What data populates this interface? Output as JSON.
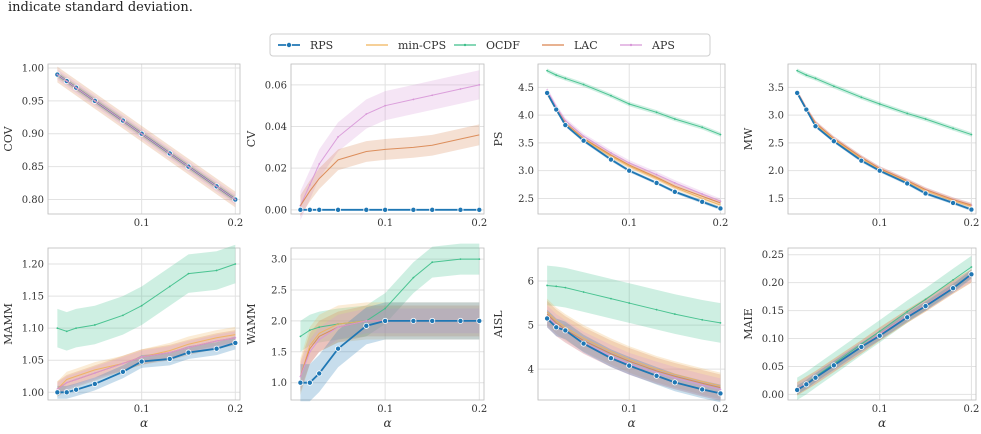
{
  "caption_text": "indicate standard deviation.",
  "legend": {
    "entries": [
      {
        "name": "RPS",
        "color": "#1f77b4",
        "marker": "dot"
      },
      {
        "name": "min-CPS",
        "color": "#f0b35a",
        "marker": "none"
      },
      {
        "name": "OCDF",
        "color": "#3dbf8a",
        "marker": "small"
      },
      {
        "name": "LAC",
        "color": "#d9854f",
        "marker": "none"
      },
      {
        "name": "APS",
        "color": "#d897d8",
        "marker": "small"
      }
    ]
  },
  "chart_data": [
    {
      "type": "line",
      "ylabel": "COV",
      "xlabel": "",
      "xlim": [
        0.0,
        0.205
      ],
      "ylim": [
        0.778,
        1.006
      ],
      "xticks": [
        "",
        "0.1",
        "0.2"
      ],
      "xtickvals": [
        0.0,
        0.1,
        0.2
      ],
      "yticks": [
        "0.80",
        "0.85",
        "0.90",
        "0.95",
        "1.00"
      ],
      "ytickvals": [
        0.8,
        0.85,
        0.9,
        0.95,
        1.0
      ],
      "x": [
        0.01,
        0.02,
        0.03,
        0.05,
        0.08,
        0.1,
        0.13,
        0.15,
        0.18,
        0.2
      ],
      "series": [
        {
          "name": "RPS",
          "values": [
            0.99,
            0.98,
            0.97,
            0.95,
            0.92,
            0.9,
            0.87,
            0.85,
            0.82,
            0.8
          ],
          "band": 0.002
        },
        {
          "name": "min-CPS",
          "values": [
            0.99,
            0.98,
            0.97,
            0.95,
            0.92,
            0.9,
            0.87,
            0.85,
            0.82,
            0.8
          ],
          "band": 0.004
        },
        {
          "name": "OCDF",
          "values": [
            0.99,
            0.98,
            0.97,
            0.95,
            0.92,
            0.9,
            0.87,
            0.85,
            0.82,
            0.8
          ],
          "band": 0.005
        },
        {
          "name": "LAC",
          "values": [
            0.99,
            0.98,
            0.97,
            0.95,
            0.92,
            0.9,
            0.87,
            0.85,
            0.82,
            0.8
          ],
          "band": 0.012
        },
        {
          "name": "APS",
          "values": [
            0.99,
            0.98,
            0.97,
            0.95,
            0.92,
            0.9,
            0.87,
            0.85,
            0.82,
            0.8
          ],
          "band": 0.008
        }
      ]
    },
    {
      "type": "line",
      "ylabel": "CV",
      "xlabel": "",
      "xlim": [
        0.0,
        0.205
      ],
      "ylim": [
        -0.002,
        0.07
      ],
      "xticks": [
        "",
        "0.1",
        "0.2"
      ],
      "xtickvals": [
        0.0,
        0.1,
        0.2
      ],
      "yticks": [
        "0.00",
        "0.02",
        "0.04",
        "0.06"
      ],
      "ytickvals": [
        0.0,
        0.02,
        0.04,
        0.06
      ],
      "x": [
        0.01,
        0.02,
        0.03,
        0.05,
        0.08,
        0.1,
        0.13,
        0.15,
        0.18,
        0.2
      ],
      "series": [
        {
          "name": "APS",
          "values": [
            0.002,
            0.012,
            0.022,
            0.035,
            0.046,
            0.05,
            0.053,
            0.055,
            0.058,
            0.06
          ],
          "band": 0.007
        },
        {
          "name": "LAC",
          "values": [
            0.002,
            0.009,
            0.015,
            0.024,
            0.028,
            0.029,
            0.03,
            0.031,
            0.034,
            0.036
          ],
          "band": 0.005
        },
        {
          "name": "min-CPS",
          "values": [
            0.0,
            0.0,
            0.0,
            0.0,
            0.0,
            0.0,
            0.0,
            0.0,
            0.0,
            0.0
          ],
          "band": 0.0
        },
        {
          "name": "OCDF",
          "values": [
            0.0,
            0.0,
            0.0,
            0.0,
            0.0,
            0.0,
            0.0,
            0.0,
            0.0,
            0.0
          ],
          "band": 0.0
        },
        {
          "name": "RPS",
          "values": [
            0.0,
            0.0,
            0.0,
            0.0,
            0.0,
            0.0,
            0.0,
            0.0,
            0.0,
            0.0
          ],
          "band": 0.0
        }
      ]
    },
    {
      "type": "line",
      "ylabel": "PS",
      "xlabel": "",
      "xlim": [
        0.0,
        0.205
      ],
      "ylim": [
        2.22,
        4.92
      ],
      "xticks": [
        "",
        "0.1",
        "0.2"
      ],
      "xtickvals": [
        0.0,
        0.1,
        0.2
      ],
      "yticks": [
        "2.5",
        "3.0",
        "3.5",
        "4.0",
        "4.5"
      ],
      "ytickvals": [
        2.5,
        3.0,
        3.5,
        4.0,
        4.5
      ],
      "x": [
        0.01,
        0.02,
        0.03,
        0.05,
        0.08,
        0.1,
        0.13,
        0.15,
        0.18,
        0.2
      ],
      "series": [
        {
          "name": "OCDF",
          "values": [
            4.8,
            4.72,
            4.66,
            4.55,
            4.35,
            4.2,
            4.05,
            3.93,
            3.78,
            3.65
          ],
          "band": 0.04
        },
        {
          "name": "APS",
          "values": [
            4.45,
            4.15,
            3.9,
            3.62,
            3.32,
            3.14,
            2.93,
            2.78,
            2.58,
            2.45
          ],
          "band": 0.05
        },
        {
          "name": "LAC",
          "values": [
            4.4,
            4.12,
            3.86,
            3.58,
            3.28,
            3.1,
            2.88,
            2.72,
            2.54,
            2.42
          ],
          "band": 0.05
        },
        {
          "name": "min-CPS",
          "values": [
            4.4,
            4.1,
            3.84,
            3.56,
            3.26,
            3.08,
            2.86,
            2.7,
            2.5,
            2.38
          ],
          "band": 0.04
        },
        {
          "name": "RPS",
          "values": [
            4.4,
            4.1,
            3.82,
            3.54,
            3.2,
            3.0,
            2.78,
            2.62,
            2.44,
            2.32
          ],
          "band": 0.03
        }
      ]
    },
    {
      "type": "line",
      "ylabel": "MW",
      "xlabel": "",
      "xlim": [
        0.0,
        0.205
      ],
      "ylim": [
        1.22,
        3.92
      ],
      "xticks": [
        "",
        "0.1",
        "0.2"
      ],
      "xtickvals": [
        0.0,
        0.1,
        0.2
      ],
      "yticks": [
        "1.5",
        "2.0",
        "2.5",
        "3.0",
        "3.5"
      ],
      "ytickvals": [
        1.5,
        2.0,
        2.5,
        3.0,
        3.5
      ],
      "x": [
        0.01,
        0.02,
        0.03,
        0.05,
        0.08,
        0.1,
        0.13,
        0.15,
        0.18,
        0.2
      ],
      "series": [
        {
          "name": "OCDF",
          "values": [
            3.8,
            3.72,
            3.66,
            3.52,
            3.32,
            3.2,
            3.03,
            2.93,
            2.76,
            2.65
          ],
          "band": 0.04
        },
        {
          "name": "APS",
          "values": [
            3.42,
            3.12,
            2.86,
            2.58,
            2.24,
            2.04,
            1.82,
            1.66,
            1.48,
            1.38
          ],
          "band": 0.04
        },
        {
          "name": "LAC",
          "values": [
            3.42,
            3.12,
            2.86,
            2.58,
            2.24,
            2.04,
            1.82,
            1.66,
            1.48,
            1.38
          ],
          "band": 0.04
        },
        {
          "name": "min-CPS",
          "values": [
            3.4,
            3.1,
            2.84,
            2.56,
            2.22,
            2.02,
            1.8,
            1.64,
            1.46,
            1.36
          ],
          "band": 0.04
        },
        {
          "name": "RPS",
          "values": [
            3.4,
            3.1,
            2.8,
            2.53,
            2.18,
            2.0,
            1.77,
            1.59,
            1.42,
            1.3
          ],
          "band": 0.03
        }
      ]
    },
    {
      "type": "line",
      "ylabel": "MAMM",
      "xlabel": "α",
      "xlim": [
        0.0,
        0.205
      ],
      "ylim": [
        0.988,
        1.225
      ],
      "xticks": [
        "",
        "0.1",
        "0.2"
      ],
      "xtickvals": [
        0.0,
        0.1,
        0.2
      ],
      "yticks": [
        "1.00",
        "1.05",
        "1.10",
        "1.15",
        "1.20"
      ],
      "ytickvals": [
        1.0,
        1.05,
        1.1,
        1.15,
        1.2
      ],
      "x": [
        0.01,
        0.02,
        0.03,
        0.05,
        0.08,
        0.1,
        0.13,
        0.15,
        0.18,
        0.2
      ],
      "series": [
        {
          "name": "OCDF",
          "values": [
            1.1,
            1.095,
            1.1,
            1.105,
            1.12,
            1.135,
            1.165,
            1.185,
            1.19,
            1.2
          ],
          "band": 0.03
        },
        {
          "name": "min-CPS",
          "values": [
            1.005,
            1.02,
            1.025,
            1.035,
            1.045,
            1.055,
            1.065,
            1.075,
            1.085,
            1.09
          ],
          "band": 0.012
        },
        {
          "name": "LAC",
          "values": [
            1.005,
            1.015,
            1.02,
            1.03,
            1.045,
            1.055,
            1.062,
            1.07,
            1.08,
            1.085
          ],
          "band": 0.012
        },
        {
          "name": "APS",
          "values": [
            1.005,
            1.015,
            1.02,
            1.03,
            1.045,
            1.055,
            1.062,
            1.07,
            1.08,
            1.085
          ],
          "band": 0.01
        },
        {
          "name": "RPS",
          "values": [
            1.0,
            1.0,
            1.004,
            1.013,
            1.032,
            1.048,
            1.052,
            1.062,
            1.068,
            1.077
          ],
          "band": 0.01
        }
      ]
    },
    {
      "type": "line",
      "ylabel": "WAMM",
      "xlabel": "α",
      "xlim": [
        0.0,
        0.205
      ],
      "ylim": [
        0.72,
        3.18
      ],
      "xticks": [
        "",
        "0.1",
        "0.2"
      ],
      "xtickvals": [
        0.0,
        0.1,
        0.2
      ],
      "yticks": [
        "1.0",
        "1.5",
        "2.0",
        "2.5",
        "3.0"
      ],
      "ytickvals": [
        1.0,
        1.5,
        2.0,
        2.5,
        3.0
      ],
      "x": [
        0.01,
        0.02,
        0.03,
        0.05,
        0.08,
        0.1,
        0.13,
        0.15,
        0.18,
        0.2
      ],
      "series": [
        {
          "name": "OCDF",
          "values": [
            1.75,
            1.85,
            1.9,
            1.95,
            2.0,
            2.2,
            2.7,
            2.95,
            3.0,
            3.0
          ],
          "band": 0.25
        },
        {
          "name": "min-CPS",
          "values": [
            1.1,
            1.6,
            1.8,
            1.95,
            2.0,
            2.0,
            2.0,
            2.0,
            2.0,
            2.0
          ],
          "band": 0.3
        },
        {
          "name": "LAC",
          "values": [
            1.1,
            1.55,
            1.75,
            1.9,
            2.0,
            2.0,
            2.0,
            2.0,
            2.0,
            2.0
          ],
          "band": 0.25
        },
        {
          "name": "APS",
          "values": [
            1.1,
            1.5,
            1.7,
            1.9,
            2.0,
            2.0,
            2.0,
            2.0,
            2.0,
            2.0
          ],
          "band": 0.2
        },
        {
          "name": "RPS",
          "values": [
            1.0,
            1.0,
            1.15,
            1.55,
            1.92,
            2.0,
            2.0,
            2.0,
            2.0,
            2.0
          ],
          "band": 0.3
        }
      ]
    },
    {
      "type": "line",
      "ylabel": "AISL",
      "xlabel": "α",
      "xlim": [
        0.0,
        0.205
      ],
      "ylim": [
        3.3,
        6.75
      ],
      "xticks": [
        "",
        "0.1",
        "0.2"
      ],
      "xtickvals": [
        0.0,
        0.1,
        0.2
      ],
      "yticks": [
        "4",
        "5",
        "6"
      ],
      "ytickvals": [
        4,
        5,
        6
      ],
      "x": [
        0.01,
        0.02,
        0.03,
        0.05,
        0.08,
        0.1,
        0.13,
        0.15,
        0.18,
        0.2
      ],
      "series": [
        {
          "name": "OCDF",
          "values": [
            5.9,
            5.88,
            5.85,
            5.75,
            5.6,
            5.5,
            5.35,
            5.25,
            5.12,
            5.05
          ],
          "band": 0.45
        },
        {
          "name": "min-CPS",
          "values": [
            5.3,
            5.1,
            4.95,
            4.7,
            4.4,
            4.22,
            4.0,
            3.88,
            3.72,
            3.62
          ],
          "band": 0.3
        },
        {
          "name": "LAC",
          "values": [
            5.25,
            5.05,
            4.9,
            4.65,
            4.35,
            4.18,
            3.96,
            3.84,
            3.68,
            3.58
          ],
          "band": 0.3
        },
        {
          "name": "APS",
          "values": [
            5.2,
            5.0,
            4.86,
            4.6,
            4.3,
            4.12,
            3.92,
            3.8,
            3.64,
            3.54
          ],
          "band": 0.25
        },
        {
          "name": "RPS",
          "values": [
            5.15,
            4.95,
            4.88,
            4.58,
            4.25,
            4.08,
            3.85,
            3.7,
            3.54,
            3.45
          ],
          "band": 0.2
        }
      ]
    },
    {
      "type": "line",
      "ylabel": "MAIE",
      "xlabel": "α",
      "xlim": [
        0.0,
        0.205
      ],
      "ylim": [
        -0.01,
        0.262
      ],
      "xticks": [
        "",
        "0.1",
        "0.2"
      ],
      "xtickvals": [
        0.0,
        0.1,
        0.2
      ],
      "yticks": [
        "0.00",
        "0.05",
        "0.10",
        "0.15",
        "0.20",
        "0.25"
      ],
      "ytickvals": [
        0.0,
        0.05,
        0.1,
        0.15,
        0.2,
        0.25
      ],
      "x": [
        0.01,
        0.02,
        0.03,
        0.05,
        0.08,
        0.1,
        0.13,
        0.15,
        0.18,
        0.2
      ],
      "series": [
        {
          "name": "OCDF",
          "values": [
            0.01,
            0.02,
            0.032,
            0.055,
            0.09,
            0.113,
            0.148,
            0.17,
            0.205,
            0.228
          ],
          "band": 0.02
        },
        {
          "name": "min-CPS",
          "values": [
            0.01,
            0.02,
            0.03,
            0.052,
            0.085,
            0.108,
            0.14,
            0.16,
            0.192,
            0.212
          ],
          "band": 0.012
        },
        {
          "name": "LAC",
          "values": [
            0.01,
            0.02,
            0.03,
            0.052,
            0.085,
            0.108,
            0.14,
            0.16,
            0.192,
            0.212
          ],
          "band": 0.012
        },
        {
          "name": "APS",
          "values": [
            0.01,
            0.02,
            0.03,
            0.052,
            0.085,
            0.108,
            0.14,
            0.16,
            0.192,
            0.212
          ],
          "band": 0.01
        },
        {
          "name": "RPS",
          "values": [
            0.008,
            0.018,
            0.03,
            0.052,
            0.085,
            0.105,
            0.138,
            0.158,
            0.19,
            0.215
          ],
          "band": 0.008
        }
      ]
    }
  ]
}
